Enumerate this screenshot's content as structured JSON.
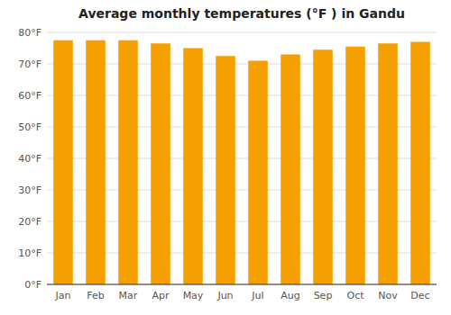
{
  "chart_data": {
    "type": "bar",
    "title": "Average monthly temperatures (°F ) in Gandu",
    "categories": [
      "Jan",
      "Feb",
      "Mar",
      "Apr",
      "May",
      "Jun",
      "Jul",
      "Aug",
      "Sep",
      "Oct",
      "Nov",
      "Dec"
    ],
    "values": [
      77.5,
      77.5,
      77.5,
      76.5,
      75.0,
      72.5,
      71.0,
      73.0,
      74.5,
      75.5,
      76.5,
      77.0
    ],
    "color": "#F5A000",
    "ylim": [
      0,
      80
    ],
    "yticks": [
      {
        "value": 0,
        "label": "0°F"
      },
      {
        "value": 10,
        "label": "10°F"
      },
      {
        "value": 20,
        "label": "20°F"
      },
      {
        "value": 30,
        "label": "30°F"
      },
      {
        "value": 40,
        "label": "40°F"
      },
      {
        "value": 50,
        "label": "50°F"
      },
      {
        "value": 60,
        "label": "60°F"
      },
      {
        "value": 70,
        "label": "70°F"
      },
      {
        "value": 80,
        "label": "80°F"
      }
    ],
    "grid": true
  }
}
